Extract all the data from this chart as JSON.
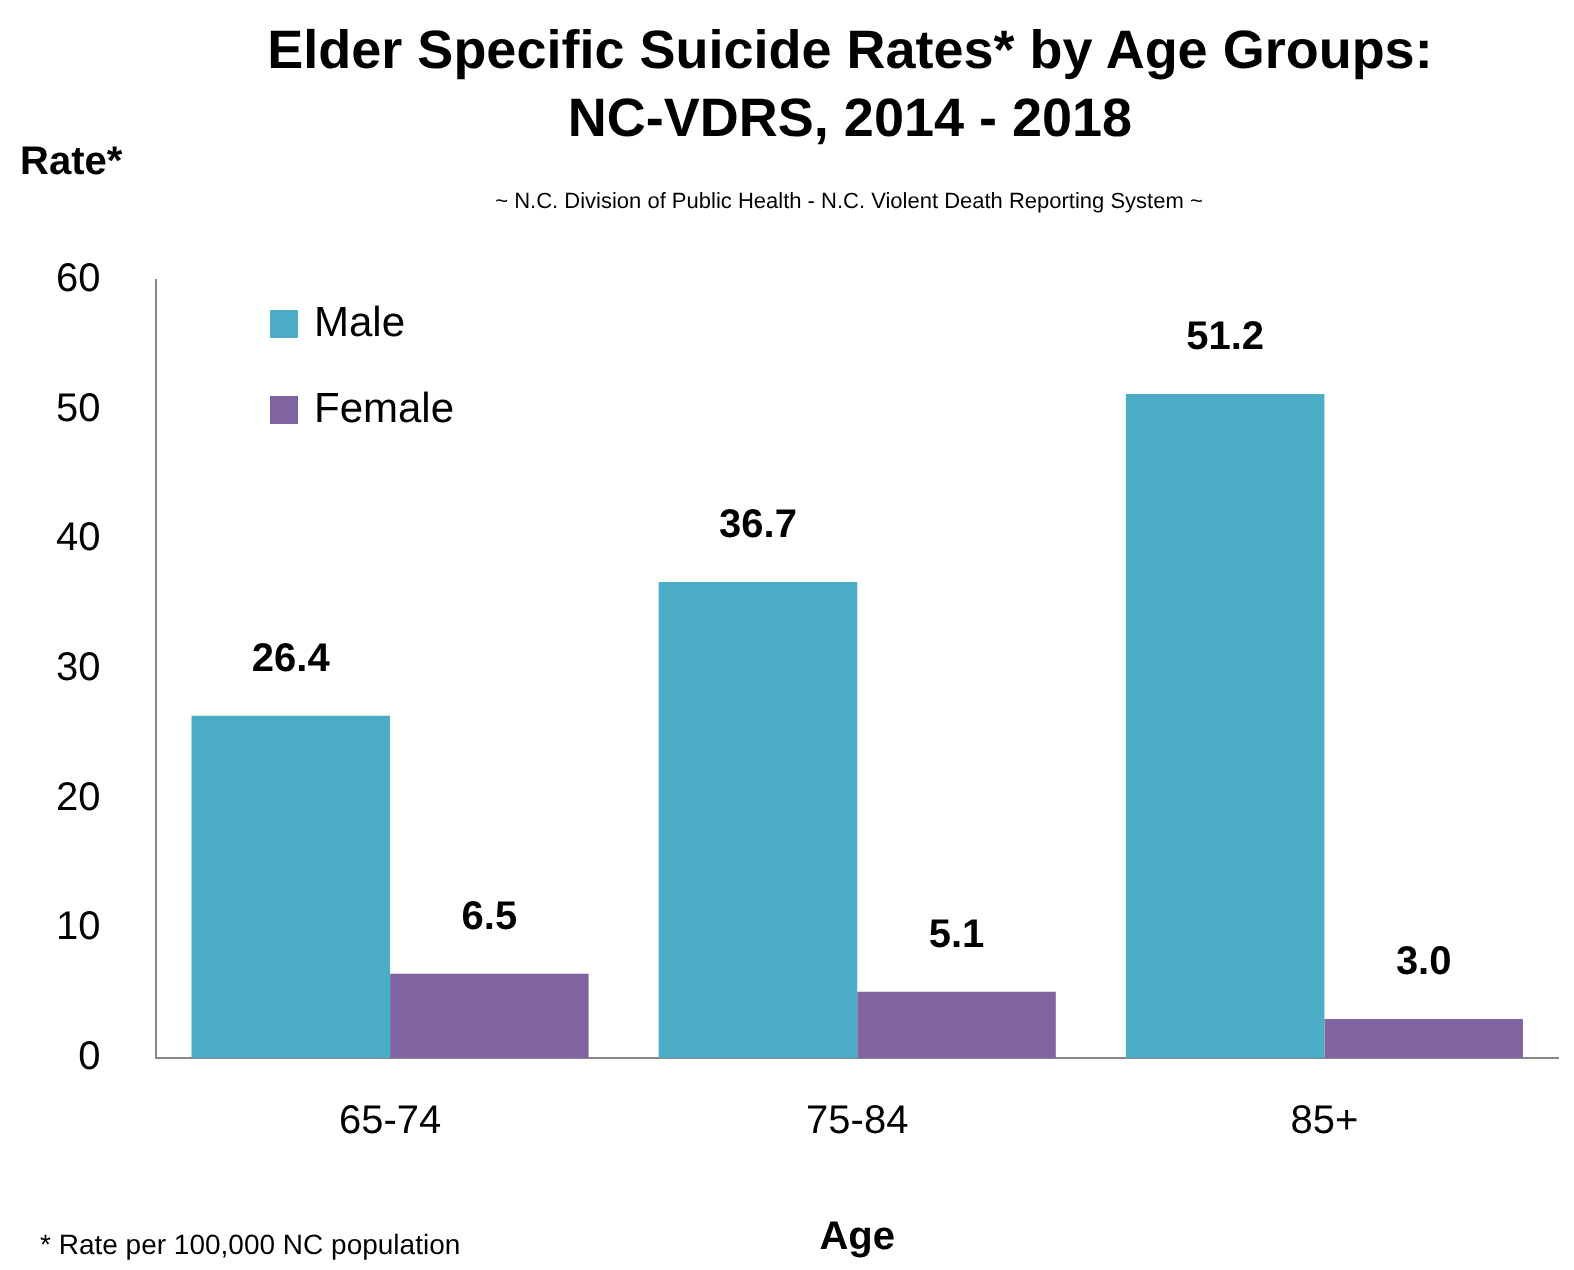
{
  "chart_data": {
    "type": "bar",
    "title": "Elder Specific Suicide Rates* by Age Groups: NC-VDRS, 2014 - 2018",
    "subtitle": "~ N.C. Division of Public Health - N.C. Violent Death Reporting System ~",
    "ylabel": "Rate*",
    "xlabel": "Age",
    "categories": [
      "65-74",
      "75-84",
      "85+"
    ],
    "series": [
      {
        "name": "Male",
        "color": "#4bacc6",
        "values": [
          26.4,
          36.7,
          51.2
        ],
        "value_labels": [
          "26.4",
          "36.7",
          "51.2"
        ]
      },
      {
        "name": "Female",
        "color": "#8064a2",
        "values": [
          6.5,
          5.1,
          3.0
        ],
        "value_labels": [
          "6.5",
          "5.1",
          "3.0"
        ]
      }
    ],
    "ylim": [
      0,
      60
    ],
    "yticks": [
      0,
      10,
      20,
      30,
      40,
      50,
      60
    ],
    "grid": false,
    "legend": "top left",
    "annotations": [
      "* Rate per 100,000 NC population"
    ]
  }
}
